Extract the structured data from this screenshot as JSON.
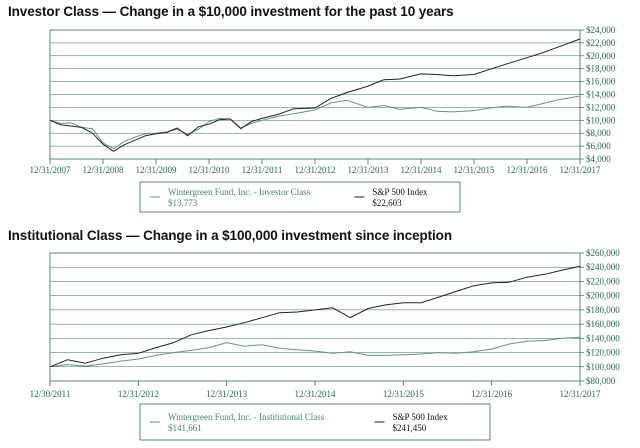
{
  "chart_data": [
    {
      "type": "line",
      "title": "Investor Class — Change in a $10,000 investment for the past 10 years",
      "x_ticks": [
        "12/31/2007",
        "12/31/2008",
        "12/31/2009",
        "12/31/2010",
        "12/31/2011",
        "12/31/2012",
        "12/31/2013",
        "12/31/2014",
        "12/31/2015",
        "12/31/2016",
        "12/31/2017"
      ],
      "y_ticks": [
        "$4,000",
        "$6,000",
        "$8,000",
        "$10,000",
        "$12,000",
        "$14,000",
        "$16,000",
        "$18,000",
        "$20,000",
        "$22,000",
        "$24,000"
      ],
      "xlim": [
        2008.0,
        2018.0
      ],
      "ylim": [
        4000,
        24000
      ],
      "grid": true,
      "legend": "bottom",
      "colors": {
        "fund": "#5c9a7e",
        "index": "#222222",
        "axis": "#2f6f55"
      },
      "series": [
        {
          "name": "Wintergreen Fund, Inc. - Investor Class",
          "value_label": "$13,773",
          "x": [
            2008.0,
            2008.2,
            2008.4,
            2008.6,
            2008.8,
            2009.0,
            2009.2,
            2009.4,
            2009.6,
            2009.8,
            2010.0,
            2010.2,
            2010.4,
            2010.6,
            2010.8,
            2011.0,
            2011.2,
            2011.4,
            2011.6,
            2011.8,
            2012.0,
            2012.3,
            2012.6,
            2013.0,
            2013.3,
            2013.6,
            2014.0,
            2014.3,
            2014.6,
            2015.0,
            2015.3,
            2015.6,
            2016.0,
            2016.3,
            2016.6,
            2017.0,
            2017.3,
            2017.6,
            2018.0
          ],
          "y": [
            10000,
            9500,
            9600,
            8900,
            8700,
            6500,
            5600,
            6700,
            7400,
            7900,
            8000,
            8200,
            8600,
            7800,
            8600,
            9800,
            10300,
            10200,
            8800,
            9500,
            10000,
            10600,
            11000,
            11600,
            12700,
            13100,
            12000,
            12300,
            11700,
            12000,
            11400,
            11300,
            11500,
            11900,
            12200,
            12000,
            12600,
            13200,
            13773
          ]
        },
        {
          "name": "S&P 500 Index",
          "value_label": "$22,603",
          "x": [
            2008.0,
            2008.2,
            2008.4,
            2008.6,
            2008.8,
            2009.0,
            2009.2,
            2009.4,
            2009.6,
            2009.8,
            2010.0,
            2010.2,
            2010.4,
            2010.6,
            2010.8,
            2011.0,
            2011.2,
            2011.4,
            2011.6,
            2011.8,
            2012.0,
            2012.3,
            2012.6,
            2013.0,
            2013.3,
            2013.6,
            2014.0,
            2014.3,
            2014.6,
            2015.0,
            2015.3,
            2015.6,
            2016.0,
            2016.3,
            2016.6,
            2017.0,
            2017.3,
            2017.6,
            2018.0
          ],
          "y": [
            10000,
            9300,
            9100,
            8900,
            8000,
            6300,
            5200,
            6200,
            6900,
            7600,
            7900,
            8100,
            8800,
            7600,
            9000,
            9400,
            10100,
            10200,
            8700,
            9800,
            10300,
            10900,
            11800,
            11900,
            13400,
            14300,
            15300,
            16300,
            16400,
            17200,
            17100,
            16900,
            17100,
            17900,
            18700,
            19700,
            20500,
            21400,
            22603
          ]
        }
      ]
    },
    {
      "type": "line",
      "title": "Institutional Class — Change in a $100,000 investment since inception",
      "x_ticks": [
        "12/30/2011",
        "12/31/2012",
        "12/31/2013",
        "12/31/2014",
        "12/31/2015",
        "12/31/2016",
        "12/31/2017"
      ],
      "y_ticks": [
        "$80,000",
        "$100,000",
        "$120,000",
        "$140,000",
        "$160,000",
        "$180,000",
        "$200,000",
        "$220,000",
        "$240,000",
        "$260,000"
      ],
      "xlim": [
        2012.0,
        2018.0
      ],
      "ylim": [
        80000,
        260000
      ],
      "grid": true,
      "legend": "bottom",
      "colors": {
        "fund": "#5c9a7e",
        "index": "#222222",
        "axis": "#2f6f55"
      },
      "series": [
        {
          "name": "Wintergreen Fund, Inc. - Institutional Class",
          "value_label": "$141,661",
          "x": [
            2012.0,
            2012.2,
            2012.4,
            2012.6,
            2012.8,
            2013.0,
            2013.2,
            2013.4,
            2013.6,
            2013.8,
            2014.0,
            2014.2,
            2014.4,
            2014.6,
            2014.8,
            2015.0,
            2015.2,
            2015.4,
            2015.6,
            2015.8,
            2016.0,
            2016.2,
            2016.4,
            2016.6,
            2016.8,
            2017.0,
            2017.2,
            2017.4,
            2017.6,
            2017.8,
            2018.0
          ],
          "y": [
            100000,
            103000,
            101000,
            104000,
            108000,
            111000,
            116000,
            120000,
            123000,
            127000,
            134000,
            129000,
            131000,
            126000,
            124000,
            122000,
            119000,
            121000,
            116000,
            116000,
            117000,
            118000,
            120000,
            119000,
            121000,
            125000,
            132000,
            136000,
            137000,
            140000,
            141661
          ]
        },
        {
          "name": "S&P 500 Index",
          "value_label": "$241,450",
          "x": [
            2012.0,
            2012.2,
            2012.4,
            2012.6,
            2012.8,
            2013.0,
            2013.2,
            2013.4,
            2013.6,
            2013.8,
            2014.0,
            2014.2,
            2014.4,
            2014.6,
            2014.8,
            2015.0,
            2015.2,
            2015.4,
            2015.6,
            2015.8,
            2016.0,
            2016.2,
            2016.4,
            2016.6,
            2016.8,
            2017.0,
            2017.2,
            2017.4,
            2017.6,
            2017.8,
            2018.0
          ],
          "y": [
            100000,
            110000,
            105000,
            112000,
            117000,
            119000,
            127000,
            134000,
            145000,
            151000,
            156000,
            162000,
            169000,
            176000,
            177000,
            180000,
            183000,
            169000,
            182000,
            187000,
            190000,
            190000,
            198000,
            206000,
            214000,
            218000,
            219000,
            226000,
            230000,
            236000,
            241450
          ]
        }
      ]
    }
  ]
}
